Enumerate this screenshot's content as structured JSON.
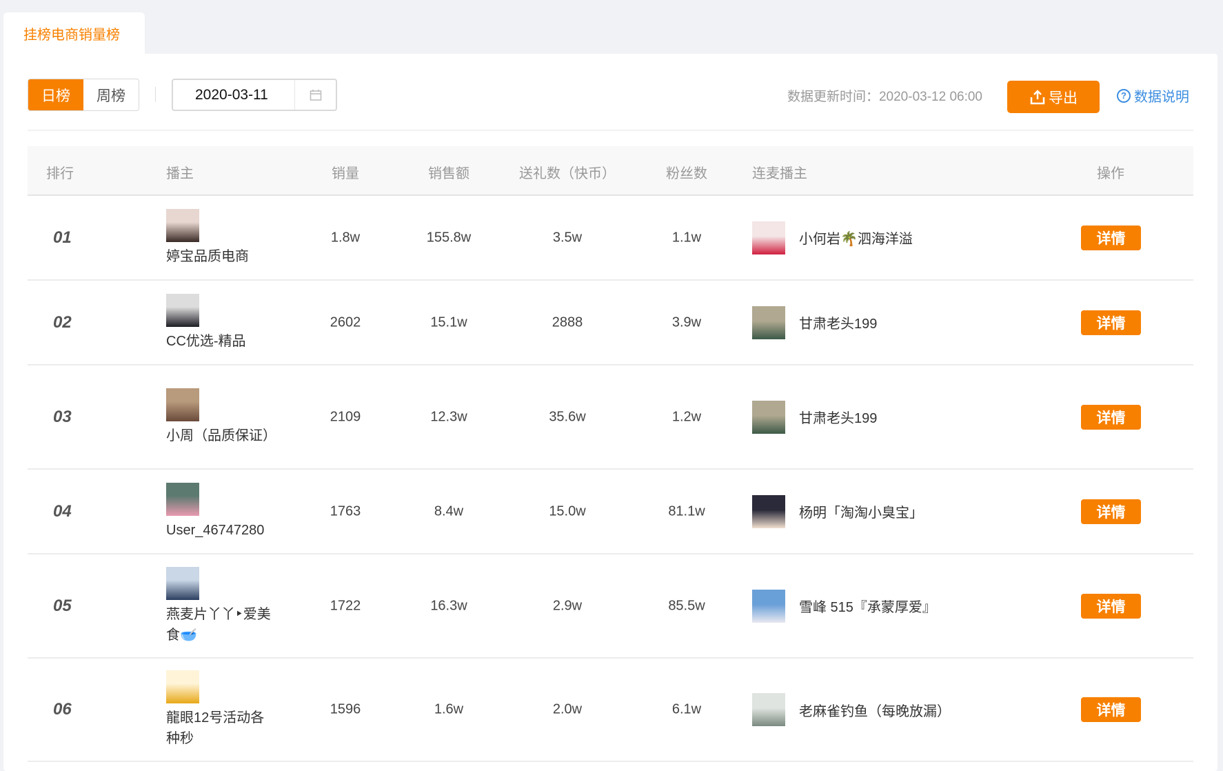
{
  "tab": {
    "label": "挂榜电商销量榜"
  },
  "toolbar": {
    "daily_label": "日榜",
    "weekly_label": "周榜",
    "date_value": "2020-03-11",
    "update_text": "数据更新时间：2020-03-12 06:00",
    "export_label": "导出",
    "help_label": "数据说明"
  },
  "colors": {
    "accent": "#f78000",
    "link": "#3d8ee0"
  },
  "table": {
    "headers": [
      "排行",
      "播主",
      "销量",
      "销售额",
      "送礼数（快币）",
      "粉丝数",
      "连麦播主",
      "操作"
    ],
    "rows": [
      {
        "rank": "01",
        "host": "婷宝品质电商",
        "sales": "1.8w",
        "revenue": "155.8w",
        "gifts": "3.5w",
        "fans": "1.1w",
        "linked": "小何岩🌴泗海洋溢",
        "action": "详情"
      },
      {
        "rank": "02",
        "host": "CC优选-精品",
        "sales": "2602",
        "revenue": "15.1w",
        "gifts": "2888",
        "fans": "3.9w",
        "linked": "甘肃老头199",
        "action": "详情"
      },
      {
        "rank": "03",
        "host": "小周（品质保证）",
        "sales": "2109",
        "revenue": "12.3w",
        "gifts": "35.6w",
        "fans": "1.2w",
        "linked": "甘肃老头199",
        "action": "详情"
      },
      {
        "rank": "04",
        "host": "User_46747280",
        "sales": "1763",
        "revenue": "8.4w",
        "gifts": "15.0w",
        "fans": "81.1w",
        "linked": "杨明「淘淘小臭宝」",
        "action": "详情"
      },
      {
        "rank": "05",
        "host": "燕麦片丫丫‣爱美食🥣",
        "sales": "1722",
        "revenue": "16.3w",
        "gifts": "2.9w",
        "fans": "85.5w",
        "linked": "雪峰 515『承蒙厚爱』",
        "action": "详情"
      },
      {
        "rank": "06",
        "host": "龍眼12号活动各种秒",
        "sales": "1596",
        "revenue": "1.6w",
        "gifts": "2.0w",
        "fans": "6.1w",
        "linked": "老麻雀钓鱼（每晚放漏）",
        "action": "详情"
      }
    ]
  }
}
